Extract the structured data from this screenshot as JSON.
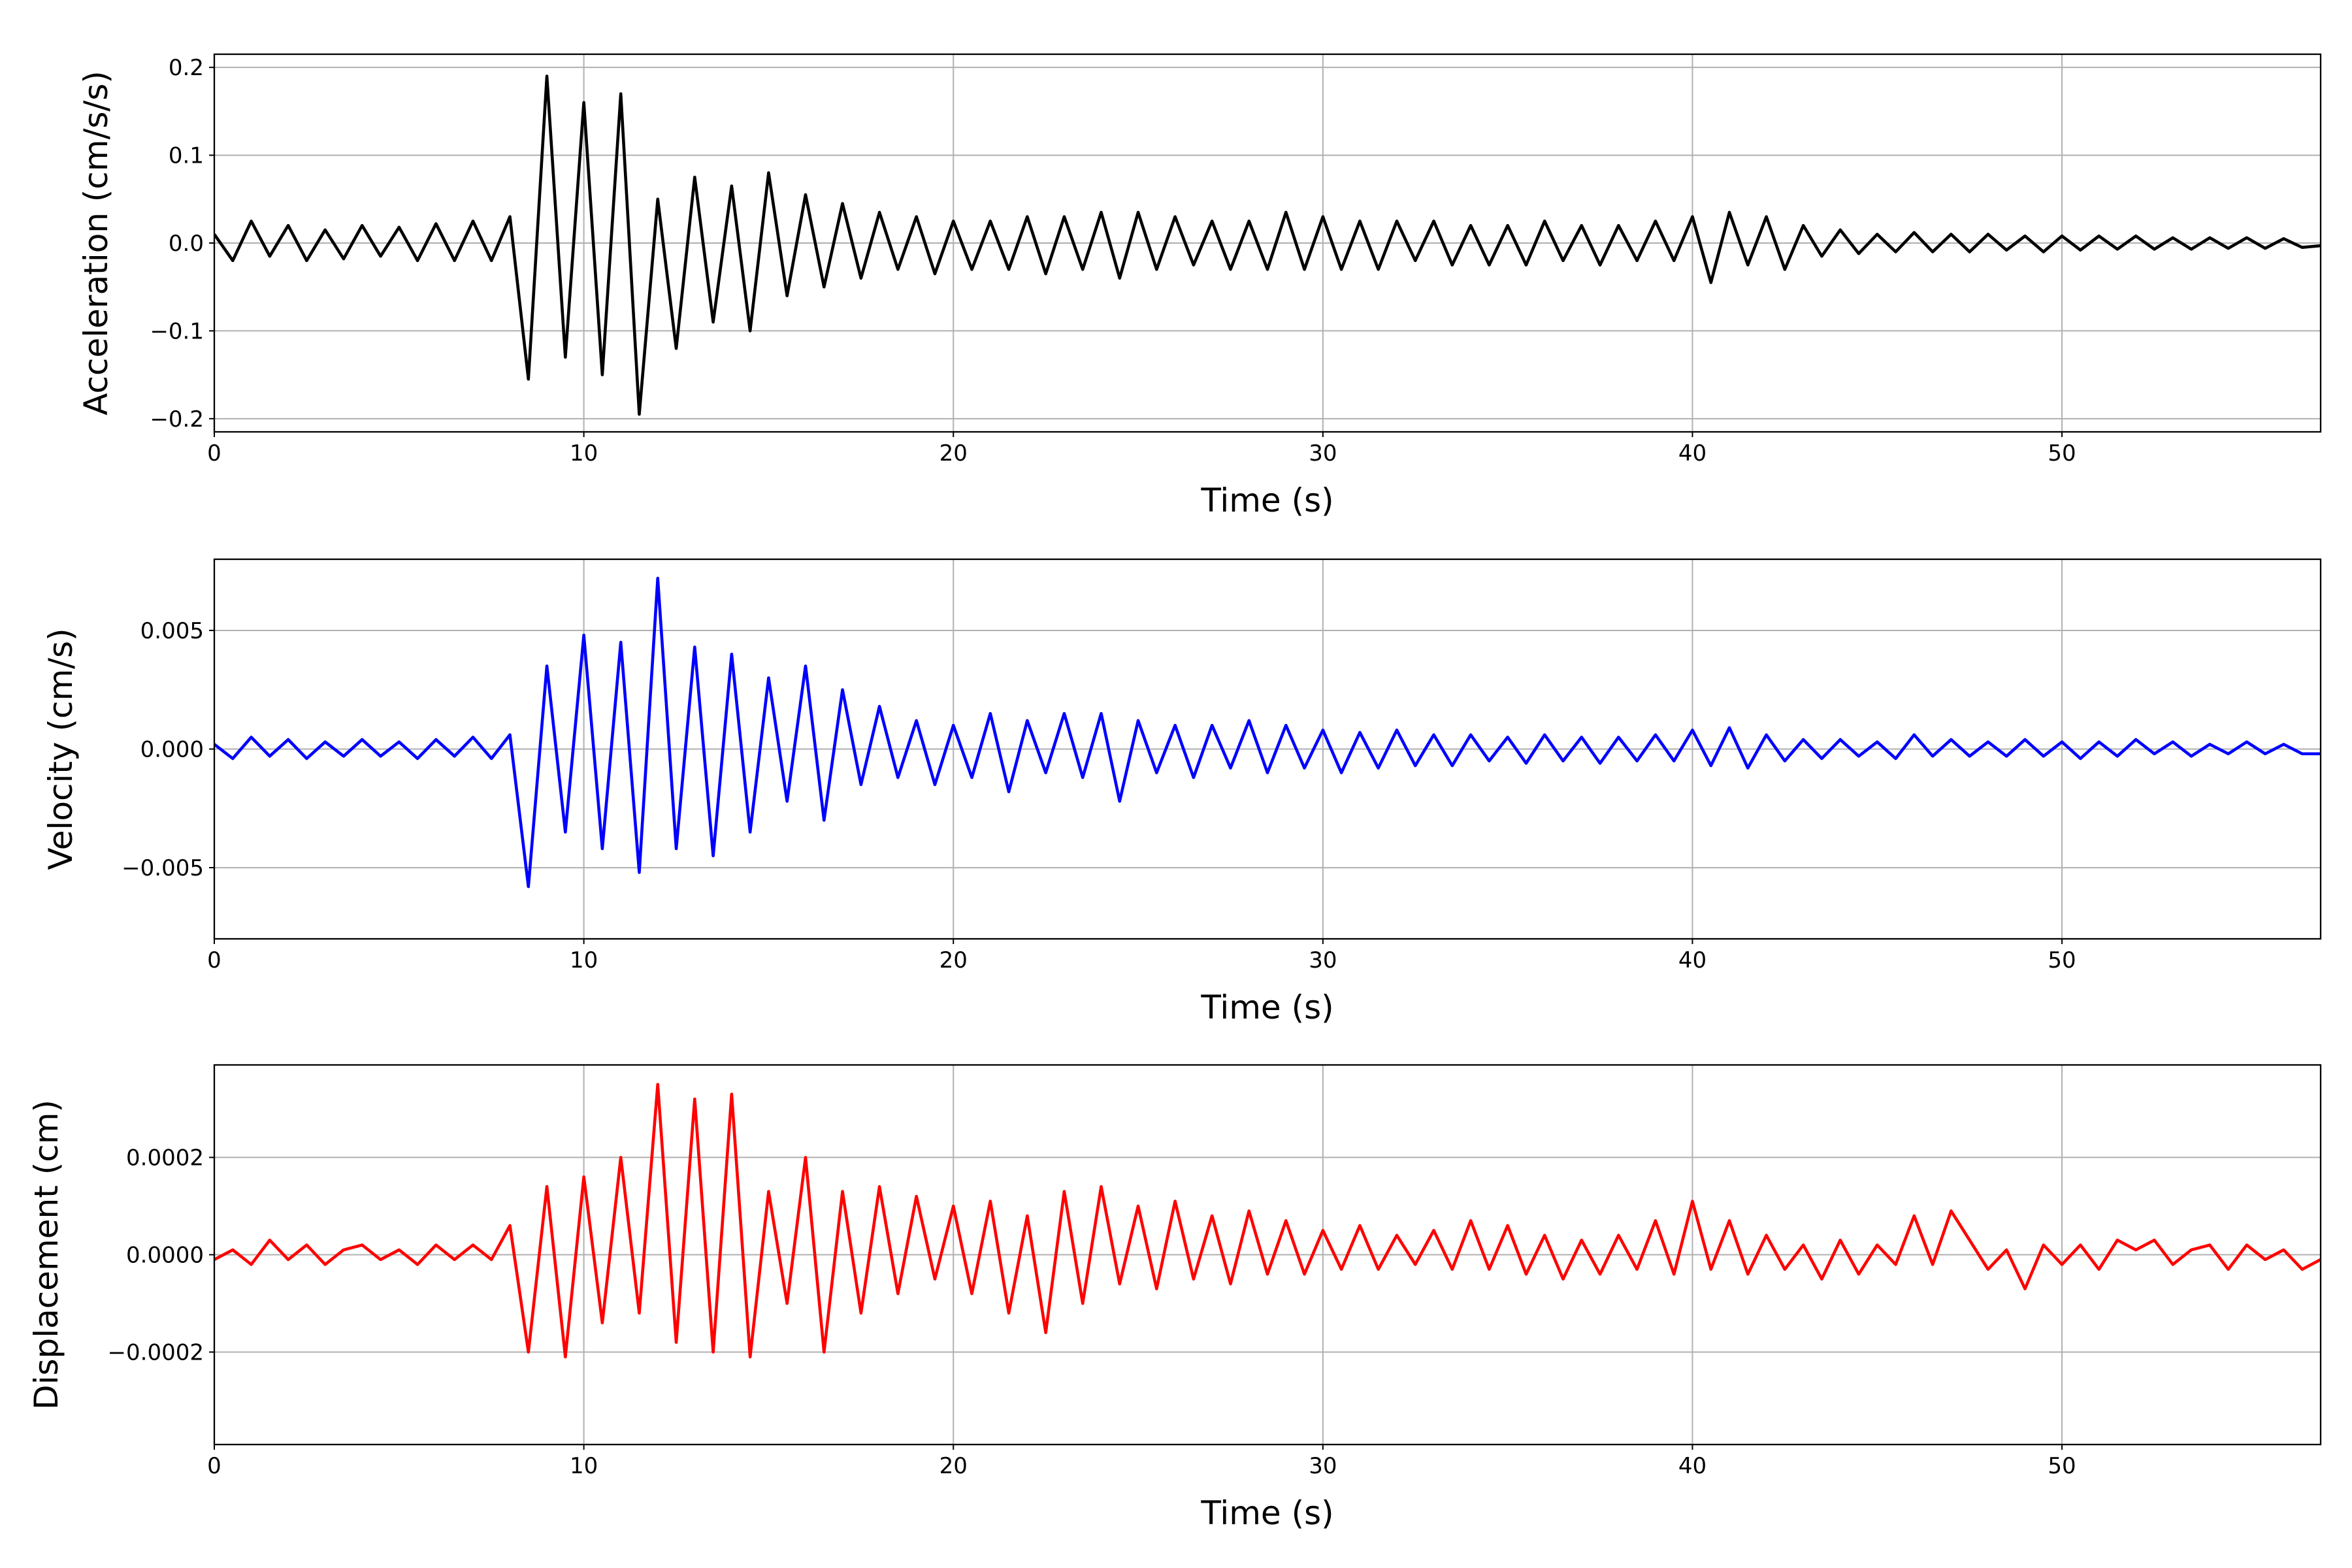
{
  "chart_data": [
    {
      "type": "line",
      "xlabel": "Time (s)",
      "ylabel": "Acceleration (cm/s/s)",
      "color": "#000000",
      "grid": true,
      "xlim": [
        0,
        57
      ],
      "xticks": [
        0,
        10,
        20,
        30,
        40,
        50
      ],
      "ylim": [
        -0.215,
        0.215
      ],
      "yticks": [
        {
          "value": -0.2,
          "label": "−0.2"
        },
        {
          "value": -0.1,
          "label": "−0.1"
        },
        {
          "value": 0,
          "label": "0.0"
        },
        0.1,
        0.2
      ],
      "x": [
        0,
        0.5,
        1,
        1.5,
        2,
        2.5,
        3,
        3.5,
        4,
        4.5,
        5,
        5.5,
        6,
        6.5,
        7,
        7.5,
        8,
        8.5,
        9,
        9.5,
        10,
        10.5,
        11,
        11.5,
        12,
        12.5,
        13,
        13.5,
        14,
        14.5,
        15,
        15.5,
        16,
        16.5,
        17,
        17.5,
        18,
        18.5,
        19,
        19.5,
        20,
        20.5,
        21,
        21.5,
        22,
        22.5,
        23,
        23.5,
        24,
        24.5,
        25,
        25.5,
        26,
        26.5,
        27,
        27.5,
        28,
        28.5,
        29,
        29.5,
        30,
        30.5,
        31,
        31.5,
        32,
        32.5,
        33,
        33.5,
        34,
        34.5,
        35,
        35.5,
        36,
        36.5,
        37,
        37.5,
        38,
        38.5,
        39,
        39.5,
        40,
        40.5,
        41,
        41.5,
        42,
        42.5,
        43,
        43.5,
        44,
        44.5,
        45,
        45.5,
        46,
        46.5,
        47,
        47.5,
        48,
        48.5,
        49,
        49.5,
        50,
        50.5,
        51,
        51.5,
        52,
        52.5,
        53,
        53.5,
        54,
        54.5,
        55,
        55.5,
        56,
        56.5,
        57
      ],
      "values": [
        0.01,
        -0.02,
        0.025,
        -0.015,
        0.02,
        -0.02,
        0.015,
        -0.018,
        0.02,
        -0.015,
        0.018,
        -0.02,
        0.022,
        -0.02,
        0.025,
        -0.02,
        0.03,
        -0.155,
        0.19,
        -0.13,
        0.16,
        -0.15,
        0.17,
        -0.195,
        0.05,
        -0.12,
        0.075,
        -0.09,
        0.065,
        -0.1,
        0.08,
        -0.06,
        0.055,
        -0.05,
        0.045,
        -0.04,
        0.035,
        -0.03,
        0.03,
        -0.035,
        0.025,
        -0.03,
        0.025,
        -0.03,
        0.03,
        -0.035,
        0.03,
        -0.03,
        0.035,
        -0.04,
        0.035,
        -0.03,
        0.03,
        -0.025,
        0.025,
        -0.03,
        0.025,
        -0.03,
        0.035,
        -0.03,
        0.03,
        -0.03,
        0.025,
        -0.03,
        0.025,
        -0.02,
        0.025,
        -0.025,
        0.02,
        -0.025,
        0.02,
        -0.025,
        0.025,
        -0.02,
        0.02,
        -0.025,
        0.02,
        -0.02,
        0.025,
        -0.02,
        0.03,
        -0.045,
        0.035,
        -0.025,
        0.03,
        -0.03,
        0.02,
        -0.015,
        0.015,
        -0.012,
        0.01,
        -0.01,
        0.012,
        -0.01,
        0.01,
        -0.01,
        0.01,
        -0.008,
        0.008,
        -0.01,
        0.008,
        -0.008,
        0.008,
        -0.007,
        0.008,
        -0.007,
        0.006,
        -0.007,
        0.006,
        -0.006,
        0.006,
        -0.006,
        0.005,
        -0.005,
        -0.003
      ]
    },
    {
      "type": "line",
      "xlabel": "Time (s)",
      "ylabel": "Velocity (cm/s)",
      "color": "#0000ff",
      "grid": true,
      "xlim": [
        0,
        57
      ],
      "xticks": [
        0,
        10,
        20,
        30,
        40,
        50
      ],
      "ylim": [
        -0.008,
        0.008
      ],
      "yticks": [
        {
          "value": -0.005,
          "label": "−0.005"
        },
        {
          "value": 0,
          "label": "0.000"
        },
        0.005
      ],
      "x": [
        0,
        0.5,
        1,
        1.5,
        2,
        2.5,
        3,
        3.5,
        4,
        4.5,
        5,
        5.5,
        6,
        6.5,
        7,
        7.5,
        8,
        8.5,
        9,
        9.5,
        10,
        10.5,
        11,
        11.5,
        12,
        12.5,
        13,
        13.5,
        14,
        14.5,
        15,
        15.5,
        16,
        16.5,
        17,
        17.5,
        18,
        18.5,
        19,
        19.5,
        20,
        20.5,
        21,
        21.5,
        22,
        22.5,
        23,
        23.5,
        24,
        24.5,
        25,
        25.5,
        26,
        26.5,
        27,
        27.5,
        28,
        28.5,
        29,
        29.5,
        30,
        30.5,
        31,
        31.5,
        32,
        32.5,
        33,
        33.5,
        34,
        34.5,
        35,
        35.5,
        36,
        36.5,
        37,
        37.5,
        38,
        38.5,
        39,
        39.5,
        40,
        40.5,
        41,
        41.5,
        42,
        42.5,
        43,
        43.5,
        44,
        44.5,
        45,
        45.5,
        46,
        46.5,
        47,
        47.5,
        48,
        48.5,
        49,
        49.5,
        50,
        50.5,
        51,
        51.5,
        52,
        52.5,
        53,
        53.5,
        54,
        54.5,
        55,
        55.5,
        56,
        56.5,
        57
      ],
      "values": [
        0.0002,
        -0.0004,
        0.0005,
        -0.0003,
        0.0004,
        -0.0004,
        0.0003,
        -0.0003,
        0.0004,
        -0.0003,
        0.0003,
        -0.0004,
        0.0004,
        -0.0003,
        0.0005,
        -0.0004,
        0.0006,
        -0.0058,
        0.0035,
        -0.0035,
        0.0048,
        -0.0042,
        0.0045,
        -0.0052,
        0.0072,
        -0.0042,
        0.0043,
        -0.0045,
        0.004,
        -0.0035,
        0.003,
        -0.0022,
        0.0035,
        -0.003,
        0.0025,
        -0.0015,
        0.0018,
        -0.0012,
        0.0012,
        -0.0015,
        0.001,
        -0.0012,
        0.0015,
        -0.0018,
        0.0012,
        -0.001,
        0.0015,
        -0.0012,
        0.0015,
        -0.0022,
        0.0012,
        -0.001,
        0.001,
        -0.0012,
        0.001,
        -0.0008,
        0.0012,
        -0.001,
        0.001,
        -0.0008,
        0.0008,
        -0.001,
        0.0007,
        -0.0008,
        0.0008,
        -0.0007,
        0.0006,
        -0.0007,
        0.0006,
        -0.0005,
        0.0005,
        -0.0006,
        0.0006,
        -0.0005,
        0.0005,
        -0.0006,
        0.0005,
        -0.0005,
        0.0006,
        -0.0005,
        0.0008,
        -0.0007,
        0.0009,
        -0.0008,
        0.0006,
        -0.0005,
        0.0004,
        -0.0004,
        0.0004,
        -0.0003,
        0.0003,
        -0.0004,
        0.0006,
        -0.0003,
        0.0004,
        -0.0003,
        0.0003,
        -0.0003,
        0.0004,
        -0.0003,
        0.0003,
        -0.0004,
        0.0003,
        -0.0003,
        0.0004,
        -0.0002,
        0.0003,
        -0.0003,
        0.0002,
        -0.0002,
        0.0003,
        -0.0002,
        0.0002,
        -0.0002,
        -0.0002
      ]
    },
    {
      "type": "line",
      "xlabel": "Time (s)",
      "ylabel": "Displacement (cm)",
      "color": "#ff0000",
      "grid": true,
      "xlim": [
        0,
        57
      ],
      "xticks": [
        0,
        10,
        20,
        30,
        40,
        50
      ],
      "ylim": [
        -0.00039,
        0.00039
      ],
      "yticks": [
        {
          "value": -0.0002,
          "label": "−0.0002"
        },
        {
          "value": 0,
          "label": "0.0000"
        },
        0.0002
      ],
      "x": [
        0,
        0.5,
        1,
        1.5,
        2,
        2.5,
        3,
        3.5,
        4,
        4.5,
        5,
        5.5,
        6,
        6.5,
        7,
        7.5,
        8,
        8.5,
        9,
        9.5,
        10,
        10.5,
        11,
        11.5,
        12,
        12.5,
        13,
        13.5,
        14,
        14.5,
        15,
        15.5,
        16,
        16.5,
        17,
        17.5,
        18,
        18.5,
        19,
        19.5,
        20,
        20.5,
        21,
        21.5,
        22,
        22.5,
        23,
        23.5,
        24,
        24.5,
        25,
        25.5,
        26,
        26.5,
        27,
        27.5,
        28,
        28.5,
        29,
        29.5,
        30,
        30.5,
        31,
        31.5,
        32,
        32.5,
        33,
        33.5,
        34,
        34.5,
        35,
        35.5,
        36,
        36.5,
        37,
        37.5,
        38,
        38.5,
        39,
        39.5,
        40,
        40.5,
        41,
        41.5,
        42,
        42.5,
        43,
        43.5,
        44,
        44.5,
        45,
        45.5,
        46,
        46.5,
        47,
        47.5,
        48,
        48.5,
        49,
        49.5,
        50,
        50.5,
        51,
        51.5,
        52,
        52.5,
        53,
        53.5,
        54,
        54.5,
        55,
        55.5,
        56,
        56.5,
        57
      ],
      "values": [
        -1e-05,
        1e-05,
        -2e-05,
        3e-05,
        -1e-05,
        2e-05,
        -2e-05,
        1e-05,
        2e-05,
        -1e-05,
        1e-05,
        -2e-05,
        2e-05,
        -1e-05,
        2e-05,
        -1e-05,
        6e-05,
        -0.0002,
        0.00014,
        -0.00021,
        0.00016,
        -0.00014,
        0.0002,
        -0.00012,
        0.00035,
        -0.00018,
        0.00032,
        -0.0002,
        0.00033,
        -0.00021,
        0.00013,
        -0.0001,
        0.0002,
        -0.0002,
        0.00013,
        -0.00012,
        0.00014,
        -8e-05,
        0.00012,
        -5e-05,
        0.0001,
        -8e-05,
        0.00011,
        -0.00012,
        8e-05,
        -0.00016,
        0.00013,
        -0.0001,
        0.00014,
        -6e-05,
        0.0001,
        -7e-05,
        0.00011,
        -5e-05,
        8e-05,
        -6e-05,
        9e-05,
        -4e-05,
        7e-05,
        -4e-05,
        5e-05,
        -3e-05,
        6e-05,
        -3e-05,
        4e-05,
        -2e-05,
        5e-05,
        -3e-05,
        7e-05,
        -3e-05,
        6e-05,
        -4e-05,
        4e-05,
        -5e-05,
        3e-05,
        -4e-05,
        4e-05,
        -3e-05,
        7e-05,
        -4e-05,
        0.00011,
        -3e-05,
        7e-05,
        -4e-05,
        4e-05,
        -3e-05,
        2e-05,
        -5e-05,
        3e-05,
        -4e-05,
        2e-05,
        -2e-05,
        8e-05,
        -2e-05,
        9e-05,
        3e-05,
        -3e-05,
        1e-05,
        -7e-05,
        2e-05,
        -2e-05,
        2e-05,
        -3e-05,
        3e-05,
        1e-05,
        3e-05,
        -2e-05,
        1e-05,
        2e-05,
        -3e-05,
        2e-05,
        -1e-05,
        1e-05,
        -3e-05,
        -1e-05
      ]
    }
  ]
}
